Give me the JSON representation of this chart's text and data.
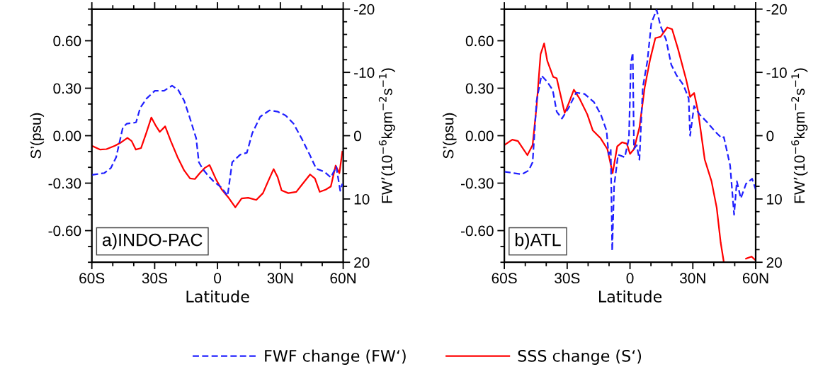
{
  "chart_data": [
    {
      "type": "line",
      "xlabel": "Latitude",
      "ylabel": "S’(psu)",
      "y2label": "FW’(10$^{−6}$kgm$^{−2}$s$^{−1}$)",
      "annotations": [
        "a)INDO-PAC"
      ],
      "xlim": [
        -60,
        60
      ],
      "xticks": [
        {
          "value": -60,
          "label": "60S"
        },
        {
          "value": -30,
          "label": "30S"
        },
        {
          "value": 0,
          "label": "0"
        },
        {
          "value": 30,
          "label": "30N"
        },
        {
          "value": 60,
          "label": "60N"
        }
      ],
      "ylim": [
        -0.8,
        0.8
      ],
      "yticks": [
        {
          "value": -0.6,
          "label": "-0.60"
        },
        {
          "value": -0.3,
          "label": "-0.30"
        },
        {
          "value": 0,
          "label": "0.00"
        },
        {
          "value": 0.3,
          "label": "0.30"
        },
        {
          "value": 0.6,
          "label": "0.60"
        }
      ],
      "y2lim": [
        20,
        -20
      ],
      "y2ticks": [
        20,
        10,
        0,
        -10,
        -20
      ],
      "grid": false,
      "legend": "bottom",
      "marker": "none",
      "series": [
        {
          "name": "FWF change (FW‘)",
          "color": "#2020ff",
          "axis": "y2",
          "line_style": "dashed",
          "x": [
            -60,
            -54,
            -50.9,
            -48.4,
            -45.2,
            -43.3,
            -38.9,
            -36.9,
            -33.8,
            -29.9,
            -25.5,
            -21.7,
            -18.7,
            -15.9,
            -13.4,
            -10.2,
            -8.9,
            -7,
            -4.5,
            -1.9,
            1.9,
            4.8,
            7,
            10.8,
            14,
            16.6,
            20.4,
            24.8,
            28.7,
            32.5,
            36.3,
            40.1,
            44,
            47.1,
            51,
            54.1,
            56.7,
            58.6,
            59.6
          ],
          "values": [
            6.2,
            5.9,
            5.1,
            3.4,
            -1.3,
            -1.9,
            -2.1,
            -4.4,
            -5.9,
            -7.1,
            -7.1,
            -7.9,
            -7.2,
            -5.5,
            -3.0,
            0.4,
            4.2,
            5.3,
            6.3,
            7.2,
            8.2,
            9.5,
            4.2,
            3.0,
            2.7,
            -0.4,
            -3.0,
            -4.0,
            -3.8,
            -3.2,
            -1.9,
            0.4,
            3.0,
            5.2,
            5.7,
            6.6,
            4.9,
            8.7,
            7.6
          ]
        },
        {
          "name": "SSS change (S‘)",
          "color": "#ff0000",
          "line_style": "solid",
          "x": [
            -60,
            -56,
            -53,
            -49,
            -46,
            -43,
            -41,
            -39,
            -36.5,
            -34,
            -31.6,
            -29.7,
            -27.6,
            -25,
            -22.3,
            -19.1,
            -15.9,
            -13.1,
            -10.8,
            -8.5,
            -6,
            -3.8,
            -0.6,
            1.9,
            5.1,
            8.5,
            11.5,
            14.6,
            18.5,
            21.7,
            24.2,
            26.8,
            28.7,
            30.6,
            33.8,
            37.6,
            40.1,
            44.2,
            46.5,
            48.8,
            51.6,
            54.1,
            56.4,
            58.2,
            59.6
          ],
          "values": [
            -0.064,
            -0.088,
            -0.085,
            -0.064,
            -0.042,
            -0.014,
            -0.034,
            -0.088,
            -0.078,
            0.017,
            0.115,
            0.068,
            0.024,
            0.059,
            -0.034,
            -0.135,
            -0.22,
            -0.27,
            -0.274,
            -0.237,
            -0.203,
            -0.186,
            -0.279,
            -0.338,
            -0.389,
            -0.453,
            -0.397,
            -0.392,
            -0.406,
            -0.363,
            -0.287,
            -0.211,
            -0.262,
            -0.346,
            -0.363,
            -0.355,
            -0.313,
            -0.245,
            -0.27,
            -0.355,
            -0.341,
            -0.321,
            -0.189,
            -0.237,
            -0.101
          ]
        }
      ]
    },
    {
      "type": "line",
      "xlabel": "Latitude",
      "ylabel": "S’(psu)",
      "y2label": "FW’(10$^{−6}$kgm$^{−2}$s$^{−1}$)",
      "annotations": [
        "b)ATL"
      ],
      "xlim": [
        -60,
        60
      ],
      "xticks": [
        {
          "value": -60,
          "label": "60S"
        },
        {
          "value": -30,
          "label": "30S"
        },
        {
          "value": 0,
          "label": "0"
        },
        {
          "value": 30,
          "label": "30N"
        },
        {
          "value": 60,
          "label": "60N"
        }
      ],
      "ylim": [
        -0.8,
        0.8
      ],
      "yticks": [
        {
          "value": -0.6,
          "label": "-0.60"
        },
        {
          "value": -0.3,
          "label": "-0.30"
        },
        {
          "value": 0,
          "label": "0.00"
        },
        {
          "value": 0.3,
          "label": "0.30"
        },
        {
          "value": 0.6,
          "label": "0.60"
        }
      ],
      "y2lim": [
        20,
        -20
      ],
      "y2ticks": [
        20,
        10,
        0,
        -10,
        -20
      ],
      "grid": false,
      "marker": "none",
      "series": [
        {
          "color": "#2020ff",
          "axis": "y2",
          "line_style": "dashed",
          "x": [
            -60,
            -51.6,
            -48.4,
            -46.5,
            -44.6,
            -42.3,
            -39.5,
            -36.9,
            -35,
            -32.5,
            -29.3,
            -25.7,
            -21.7,
            -17.2,
            -14,
            -11.2,
            -10.2,
            -9.2,
            -8.5,
            -7.6,
            -5.7,
            -2.5,
            -0.5,
            0.4,
            1.3,
            1.9,
            3.2,
            4.5,
            6.1,
            8.3,
            10.2,
            12.7,
            14.6,
            17.2,
            19.7,
            22.3,
            25.5,
            28,
            28.7,
            30.6,
            33.1,
            36.9,
            40.8,
            43.9,
            44.8,
            47.8,
            49.7,
            51,
            52.9,
            55.4,
            58.3,
            60
          ],
          "values": [
            5.7,
            6.1,
            5.5,
            4.2,
            -5.5,
            -9.5,
            -8.5,
            -7.2,
            -3.8,
            -2.7,
            -4.4,
            -6.8,
            -6.6,
            -5.3,
            -3.4,
            -0.8,
            3.0,
            2.1,
            18.2,
            8.0,
            3.0,
            3.4,
            0.4,
            -11.4,
            -13.1,
            2.1,
            1.5,
            3.8,
            -7.6,
            -11.8,
            -17.8,
            -19.9,
            -17.3,
            -15.2,
            -11.2,
            -9.5,
            -8.0,
            -5.9,
            0,
            -4.7,
            -3.4,
            -2.1,
            -0.6,
            0.4,
            0.2,
            4.7,
            12.5,
            7.2,
            9.9,
            7.6,
            6.8,
            8.5
          ]
        },
        {
          "color": "#ff0000",
          "line_style": "solid",
          "x": [
            -60,
            -56.2,
            -53.5,
            -49,
            -46.5,
            -44.6,
            -42.7,
            -41,
            -39.5,
            -36.7,
            -35,
            -31.2,
            -29.3,
            -26.8,
            -24.2,
            -20.4,
            -17.8,
            -14,
            -10.8,
            -8.3,
            -6.1,
            -3.8,
            -1.5,
            0,
            1.9,
            4.5,
            7,
            9.6,
            12.1,
            14.6,
            17.8,
            20.1,
            22.9,
            26.8,
            28.7,
            30.6,
            32.5,
            35.7,
            38.9,
            41.4,
            43.3,
            44.8,
            50,
            55.4,
            58,
            59.9
          ],
          "values": [
            -0.059,
            -0.025,
            -0.034,
            -0.123,
            -0.059,
            0.186,
            0.515,
            0.583,
            0.473,
            0.372,
            0.363,
            0.144,
            0.203,
            0.291,
            0.237,
            0.135,
            0.034,
            -0.017,
            -0.085,
            -0.237,
            -0.068,
            -0.042,
            -0.051,
            -0.115,
            -0.085,
            0.051,
            0.304,
            0.482,
            0.617,
            0.625,
            0.684,
            0.673,
            0.549,
            0.355,
            0.245,
            0.27,
            0.152,
            -0.152,
            -0.287,
            -0.456,
            -0.676,
            -0.8,
            null,
            -0.777,
            -0.764,
            -0.786
          ]
        }
      ]
    }
  ]
}
